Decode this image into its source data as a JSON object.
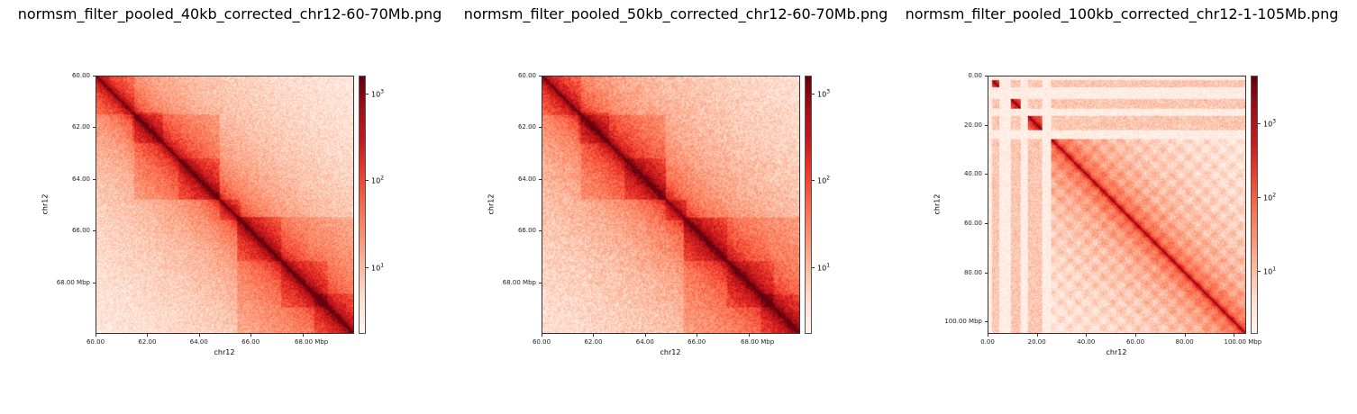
{
  "chart_data": [
    {
      "type": "heatmap",
      "title": "normsm_filter_pooled_40kb_corrected_chr12-60-70Mb.png",
      "xlabel": "chr12",
      "ylabel": "chr12",
      "range_mb": [
        60,
        70
      ],
      "resolution_kb": 40,
      "x_ticks": [
        "60.00",
        "62.00",
        "64.00",
        "66.00",
        "68.00  Mbp"
      ],
      "x_tick_values": [
        60,
        62,
        64,
        66,
        68
      ],
      "y_ticks": [
        "60.00",
        "62.00",
        "64.00",
        "66.00",
        "68.00  Mbp"
      ],
      "y_tick_values": [
        60,
        62,
        64,
        66,
        68
      ],
      "colorbar": {
        "scale": "log",
        "range": [
          1.7,
          1600
        ],
        "ticks": [
          {
            "base": "10",
            "exp": "3",
            "value": 1000
          },
          {
            "base": "10",
            "exp": "2",
            "value": 100
          },
          {
            "base": "10",
            "exp": "1",
            "value": 10
          }
        ],
        "colormap": "Reds"
      },
      "domains": [
        [
          60.0,
          61.5
        ],
        [
          61.4,
          62.6
        ],
        [
          61.5,
          64.8
        ],
        [
          63.2,
          64.8
        ],
        [
          64.8,
          65.6
        ],
        [
          65.5,
          67.2
        ],
        [
          67.2,
          69.0
        ],
        [
          68.5,
          70.0
        ],
        [
          65.5,
          70.0
        ]
      ],
      "gaps": []
    },
    {
      "type": "heatmap",
      "title": "normsm_filter_pooled_50kb_corrected_chr12-60-70Mb.png",
      "xlabel": "chr12",
      "ylabel": "chr12",
      "range_mb": [
        60,
        70
      ],
      "resolution_kb": 50,
      "x_ticks": [
        "60.00",
        "62.00",
        "64.00",
        "66.00",
        "68.00  Mbp"
      ],
      "x_tick_values": [
        60,
        62,
        64,
        66,
        68
      ],
      "y_ticks": [
        "60.00",
        "62.00",
        "64.00",
        "66.00",
        "68.00  Mbp"
      ],
      "y_tick_values": [
        60,
        62,
        64,
        66,
        68
      ],
      "colorbar": {
        "scale": "log",
        "range": [
          1.7,
          1600
        ],
        "ticks": [
          {
            "base": "10",
            "exp": "3",
            "value": 1000
          },
          {
            "base": "10",
            "exp": "2",
            "value": 100
          },
          {
            "base": "10",
            "exp": "1",
            "value": 10
          }
        ],
        "colormap": "Reds"
      },
      "domains": [
        [
          60.0,
          61.5
        ],
        [
          61.4,
          62.6
        ],
        [
          61.5,
          64.8
        ],
        [
          63.2,
          64.8
        ],
        [
          64.8,
          65.6
        ],
        [
          65.5,
          67.2
        ],
        [
          67.2,
          69.0
        ],
        [
          68.5,
          70.0
        ],
        [
          65.5,
          70.0
        ]
      ],
      "gaps": []
    },
    {
      "type": "heatmap",
      "title": "normsm_filter_pooled_100kb_corrected_chr12-1-105Mb.png",
      "xlabel": "chr12",
      "ylabel": "chr12",
      "range_mb": [
        0,
        105
      ],
      "resolution_kb": 100,
      "x_ticks": [
        "0.00",
        "20.00",
        "40.00",
        "60.00",
        "80.00",
        "100.00  Mbp"
      ],
      "x_tick_values": [
        0,
        20,
        40,
        60,
        80,
        100
      ],
      "y_ticks": [
        "0.00",
        "20.00",
        "40.00",
        "60.00",
        "80.00",
        "100.00  Mbp"
      ],
      "y_tick_values": [
        0,
        20,
        40,
        60,
        80,
        100
      ],
      "colorbar": {
        "scale": "log",
        "range": [
          1.4,
          4400
        ],
        "ticks": [
          {
            "base": "10",
            "exp": "3",
            "value": 1000
          },
          {
            "base": "10",
            "exp": "2",
            "value": 100
          },
          {
            "base": "10",
            "exp": "1",
            "value": 10
          }
        ],
        "colormap": "Reds"
      },
      "domains": [
        [
          1.5,
          4.5
        ],
        [
          9,
          13
        ],
        [
          16,
          22
        ]
      ],
      "gaps": [
        [
          0,
          1.5
        ],
        [
          4.5,
          9
        ],
        [
          13,
          16
        ],
        [
          22,
          25.5
        ]
      ]
    }
  ],
  "colors": {
    "cmap": [
      "#fff5f0",
      "#fee0d2",
      "#fcbba1",
      "#fc9272",
      "#fb6a4a",
      "#ef3b2c",
      "#cb181d",
      "#a50f15",
      "#67000d"
    ]
  }
}
